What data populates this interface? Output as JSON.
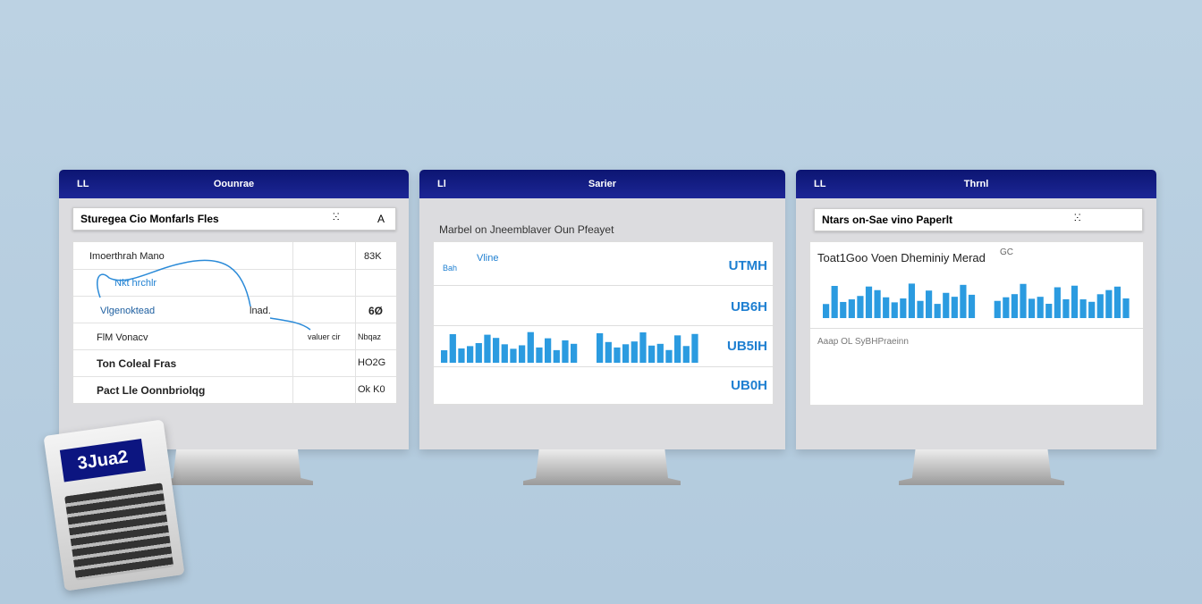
{
  "monitors": [
    {
      "header": {
        "icon": "LL",
        "title": "Oounrae"
      },
      "toolbar": {
        "title": "Sturegea Cio Monfarls Fles",
        "code": "ⵘ",
        "action": "A"
      },
      "rows": [
        [
          "Imoerthrah Mano",
          "83K"
        ],
        [
          "Nkt hrchlr",
          ""
        ],
        [
          "Vlgenoktead",
          "lnad.",
          "6Ø"
        ],
        [
          "FlM Vonacv",
          "valuer cir",
          "Nbqaz"
        ],
        [
          "Ton Coleal Fras",
          "HO2G"
        ],
        [
          "Pact Lle Oonnbriolqg",
          "Ok K0"
        ]
      ]
    },
    {
      "header": {
        "icon": "Ll",
        "title": "Sarier"
      },
      "subtitle": "Marbel on Jneemblaver Oun Pfeayet",
      "legend": [
        "Vline",
        "Bah"
      ],
      "values": [
        "UTMH",
        "UB6H",
        "UB5IH",
        "UB0H"
      ]
    },
    {
      "header": {
        "icon": "LL",
        "title": "Thrnl"
      },
      "toolbar": {
        "title": "Ntars on-Sae vino Paperlt",
        "code": "ⵘ"
      },
      "chart_title": "Toat1Goo Voen Dheminiy Merad",
      "chart_note": "GC",
      "footer": "Aaap OL SyBHPraeinn"
    }
  ],
  "laptop": {
    "label": "3Jua2"
  }
}
